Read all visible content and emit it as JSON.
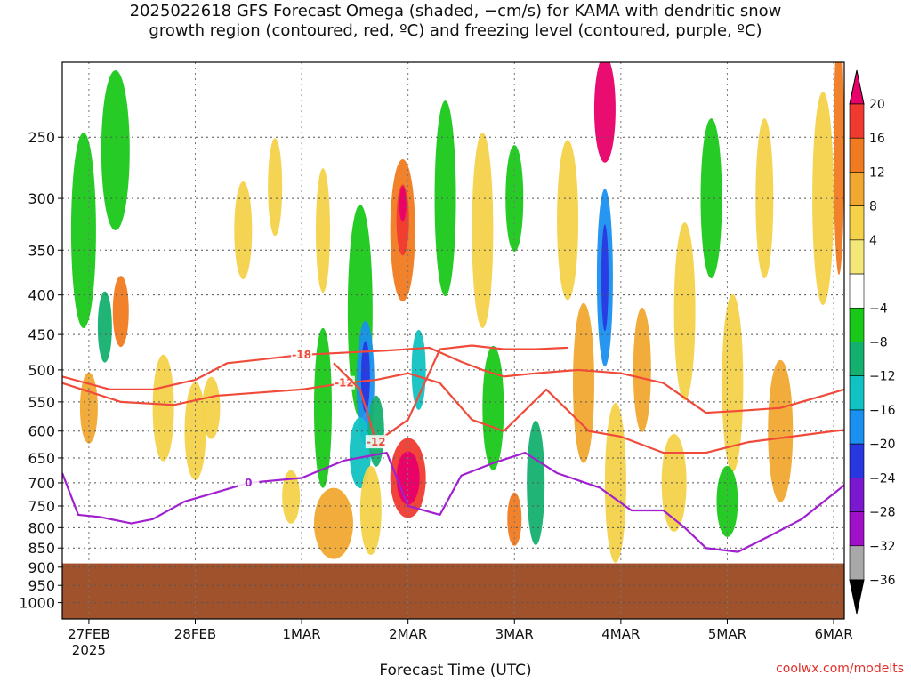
{
  "title_line1": "2025022618 GFS Forecast Omega (shaded, −cm/s) for KAMA with dendritic snow",
  "title_line2": "growth region (contoured, red, ºC) and freezing level (contoured, purple, ºC)",
  "credit": "coolwx.com/modelts",
  "chart_data": {
    "type": "heatmap",
    "xlabel": "Forecast Time (UTC)",
    "ylabel": "",
    "x_ticks": [
      "27FEB",
      "28FEB",
      "1MAR",
      "2MAR",
      "3MAR",
      "4MAR",
      "5MAR",
      "6MAR"
    ],
    "x_tick_sub": "2025",
    "x_range_days": [
      -0.25,
      7.1
    ],
    "y_ticks": [
      250,
      300,
      350,
      400,
      450,
      500,
      550,
      600,
      650,
      700,
      750,
      800,
      850,
      900,
      950,
      1000
    ],
    "y_range_hPa": [
      200,
      1050
    ],
    "grid": true,
    "colorbar": {
      "labels": [
        "20",
        "16",
        "12",
        "8",
        "4",
        "−4",
        "−8",
        "−12",
        "−16",
        "−20",
        "−24",
        "−28",
        "−32",
        "−36"
      ],
      "colors": [
        "#e8006a",
        "#f03a30",
        "#f07a20",
        "#f0a830",
        "#f4d24a",
        "#f4e77a",
        "#ffffff",
        "#1ac81a",
        "#14b070",
        "#12c2c2",
        "#1a90f0",
        "#2838e0",
        "#7a18d0",
        "#a010c8",
        "#a8a8a8",
        "#000000"
      ]
    },
    "contours": [
      {
        "label": "-18",
        "color": "#f04a3a",
        "x": [
          -0.25,
          0.2,
          0.6,
          1.0,
          1.3,
          1.6,
          2.0,
          2.4,
          2.8,
          3.2,
          3.5,
          3.7,
          3.9,
          4.2,
          4.6,
          5.0,
          5.4,
          5.8,
          6.1,
          6.5,
          6.9,
          7.1
        ],
        "y": [
          510,
          530,
          530,
          515,
          490,
          485,
          478,
          475,
          472,
          468,
          488,
          500,
          510,
          505,
          500,
          505,
          520,
          568,
          565,
          560,
          540,
          530
        ]
      },
      {
        "label": "-12",
        "color": "#f04a3a",
        "x": [
          -0.25,
          0.3,
          0.8,
          1.2,
          1.6,
          2.0,
          2.4,
          2.7,
          3.0,
          3.3,
          3.6,
          3.9,
          4.3,
          4.7,
          5.0,
          5.4,
          5.8,
          6.2,
          6.6,
          7.0,
          7.1
        ],
        "y": [
          520,
          550,
          555,
          540,
          535,
          530,
          520,
          515,
          505,
          520,
          580,
          600,
          530,
          600,
          610,
          640,
          640,
          620,
          610,
          600,
          598
        ]
      },
      {
        "label": "-12",
        "color": "#f04a3a",
        "x": [
          2.3,
          2.55,
          2.7,
          3.0,
          3.3,
          3.6,
          3.9,
          4.2,
          4.5
        ],
        "y": [
          490,
          530,
          620,
          580,
          470,
          465,
          470,
          470,
          468
        ]
      },
      {
        "label": "0",
        "color": "#a020d0",
        "x": [
          -0.25,
          -0.1,
          0.1,
          0.4,
          0.6,
          0.9,
          1.2,
          1.5,
          2.0,
          2.4,
          2.8,
          3.0,
          3.3,
          3.5,
          3.8,
          4.1,
          4.4,
          4.8,
          5.1,
          5.4,
          5.6,
          5.8,
          6.1,
          6.4,
          6.7,
          7.1
        ],
        "y": [
          680,
          770,
          775,
          790,
          780,
          740,
          720,
          700,
          690,
          655,
          640,
          750,
          770,
          685,
          660,
          640,
          680,
          710,
          760,
          760,
          800,
          850,
          860,
          820,
          780,
          705
        ]
      }
    ],
    "surface": "terrain below approx. 890 hPa (brown)"
  }
}
